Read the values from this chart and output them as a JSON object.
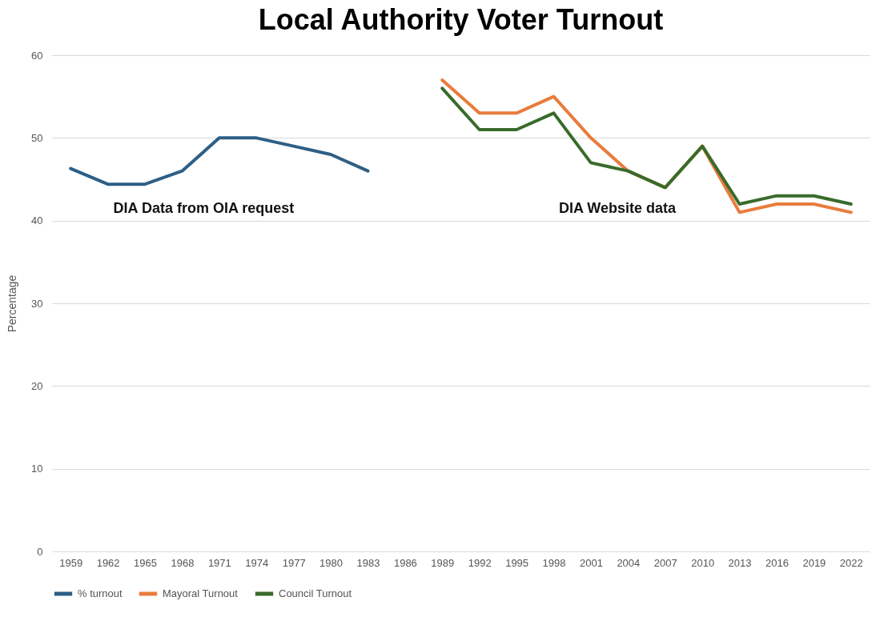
{
  "chart_data": {
    "type": "line",
    "title": "Local Authority Voter Turnout",
    "ylabel": "Percentage",
    "categories": [
      "1959",
      "1962",
      "1965",
      "1968",
      "1971",
      "1974",
      "1977",
      "1980",
      "1983",
      "1986",
      "1989",
      "1992",
      "1995",
      "1998",
      "2001",
      "2004",
      "2007",
      "2010",
      "2013",
      "2016",
      "2019",
      "2022"
    ],
    "series": [
      {
        "name": "% turnout",
        "color": "#2e5f85",
        "values": [
          46.3,
          44.4,
          44.4,
          46,
          50,
          50,
          49,
          48,
          46,
          null,
          null,
          null,
          null,
          null,
          null,
          null,
          null,
          null,
          null,
          null,
          null,
          null
        ]
      },
      {
        "name": "Mayoral Turnout",
        "color": "#e97c3c",
        "values": [
          null,
          null,
          null,
          null,
          null,
          null,
          null,
          null,
          null,
          null,
          57,
          53,
          53,
          55,
          50,
          46,
          44,
          49,
          41,
          42,
          42,
          41
        ]
      },
      {
        "name": "Council Turnout",
        "color": "#386b2b",
        "values": [
          null,
          null,
          null,
          null,
          null,
          null,
          null,
          null,
          null,
          null,
          56,
          51,
          51,
          53,
          47,
          46,
          44,
          49,
          42,
          43,
          43,
          42
        ]
      }
    ],
    "ylim": [
      0,
      60
    ],
    "yticks": [
      0,
      10,
      20,
      30,
      40,
      50,
      60
    ],
    "grid": "y",
    "legend": "bottom",
    "line_style": "solid",
    "marker": "none",
    "annotations": [
      "DIA Data from OIA request",
      "DIA Website data"
    ]
  }
}
